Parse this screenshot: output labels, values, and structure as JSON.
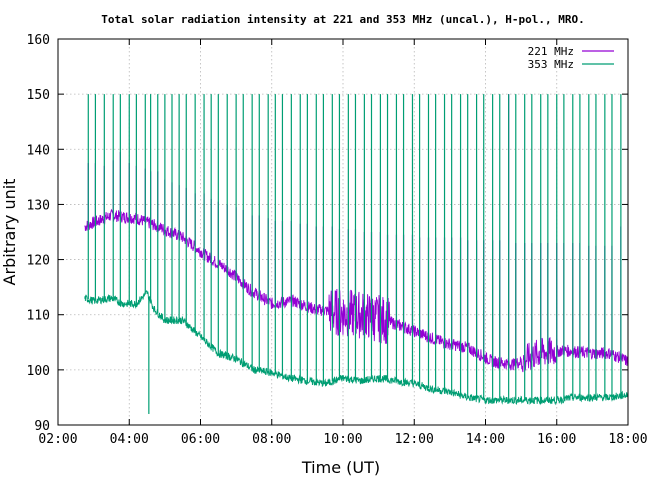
{
  "chart_data": {
    "type": "line",
    "title": "Total solar radiation intensity at 221 and 353 MHz (uncal.), H-pol., MRO.",
    "xlabel": "Time (UT)",
    "ylabel": "Arbitrary unit",
    "xlim": [
      2.0,
      18.0
    ],
    "ylim": [
      90,
      160
    ],
    "x_ticks": [
      "02:00",
      "04:00",
      "06:00",
      "08:00",
      "10:00",
      "12:00",
      "14:00",
      "16:00",
      "18:00"
    ],
    "y_ticks": [
      "90",
      "100",
      "110",
      "120",
      "130",
      "140",
      "150",
      "160"
    ],
    "grid": true,
    "legend_position": "top-right",
    "series": [
      {
        "name": "221 MHz",
        "color": "#9400d3",
        "baseline": [
          [
            2.75,
            126
          ],
          [
            3.5,
            128
          ],
          [
            4.2,
            127.5
          ],
          [
            4.8,
            126
          ],
          [
            5.5,
            124
          ],
          [
            6.2,
            120.5
          ],
          [
            6.8,
            118
          ],
          [
            7.4,
            114.5
          ],
          [
            8.0,
            112
          ],
          [
            8.6,
            112.5
          ],
          [
            9.2,
            111
          ],
          [
            9.8,
            110.5
          ],
          [
            10.5,
            110
          ],
          [
            11.2,
            109
          ],
          [
            12.0,
            107
          ],
          [
            12.8,
            105
          ],
          [
            13.5,
            104
          ],
          [
            14.2,
            101.5
          ],
          [
            14.8,
            101
          ],
          [
            15.5,
            103
          ],
          [
            16.2,
            103.5
          ],
          [
            17.0,
            103
          ],
          [
            17.5,
            103
          ],
          [
            18.0,
            101.5
          ]
        ],
        "spike_peaks": [
          [
            2.85,
            137.5
          ],
          [
            3.05,
            137.5
          ],
          [
            3.3,
            137
          ],
          [
            3.55,
            138
          ],
          [
            3.75,
            139.5
          ],
          [
            4.0,
            137.5
          ],
          [
            4.2,
            137
          ],
          [
            4.45,
            136.5
          ],
          [
            4.6,
            136
          ],
          [
            4.8,
            136
          ],
          [
            5.0,
            134.5
          ],
          [
            5.2,
            134
          ],
          [
            5.4,
            133.5
          ],
          [
            5.6,
            133
          ],
          [
            5.85,
            132
          ],
          [
            6.1,
            132
          ],
          [
            6.3,
            131
          ],
          [
            6.5,
            130.5
          ],
          [
            6.75,
            130
          ],
          [
            7.0,
            129.5
          ],
          [
            7.2,
            129
          ],
          [
            7.45,
            128
          ],
          [
            7.65,
            128
          ],
          [
            7.9,
            127.5
          ],
          [
            8.1,
            127
          ],
          [
            8.3,
            127
          ],
          [
            8.55,
            127
          ],
          [
            8.8,
            126.5
          ],
          [
            9.0,
            126.5
          ],
          [
            9.25,
            126
          ],
          [
            9.45,
            126
          ],
          [
            9.7,
            126
          ],
          [
            9.9,
            125.5
          ],
          [
            10.15,
            125.5
          ],
          [
            10.35,
            125.5
          ],
          [
            10.6,
            125
          ],
          [
            10.8,
            125
          ],
          [
            11.05,
            125
          ],
          [
            11.25,
            124.5
          ],
          [
            11.5,
            124.5
          ],
          [
            11.7,
            124.5
          ],
          [
            11.95,
            124.5
          ],
          [
            12.15,
            124
          ],
          [
            12.4,
            124
          ],
          [
            12.6,
            124
          ],
          [
            12.85,
            124
          ],
          [
            13.05,
            124
          ],
          [
            13.3,
            124
          ],
          [
            13.5,
            123.5
          ],
          [
            13.75,
            123.5
          ],
          [
            13.95,
            123.5
          ],
          [
            14.2,
            123.5
          ],
          [
            14.4,
            123.5
          ],
          [
            14.65,
            150
          ],
          [
            14.85,
            123
          ],
          [
            15.1,
            123
          ],
          [
            15.3,
            123
          ],
          [
            15.55,
            123
          ],
          [
            15.75,
            123
          ],
          [
            16.0,
            123
          ],
          [
            16.2,
            123
          ],
          [
            16.45,
            123
          ],
          [
            16.65,
            123
          ],
          [
            16.9,
            122.5
          ],
          [
            17.1,
            122.5
          ],
          [
            17.35,
            122.5
          ],
          [
            17.55,
            122.5
          ],
          [
            17.8,
            126
          ]
        ]
      },
      {
        "name": "353 MHz",
        "color": "#009e73",
        "baseline": [
          [
            2.75,
            113
          ],
          [
            3.0,
            112.5
          ],
          [
            3.5,
            113
          ],
          [
            3.8,
            112
          ],
          [
            4.2,
            112
          ],
          [
            4.5,
            114
          ],
          [
            4.7,
            111
          ],
          [
            5.0,
            109
          ],
          [
            5.5,
            109
          ],
          [
            6.0,
            106
          ],
          [
            6.5,
            103
          ],
          [
            7.0,
            102
          ],
          [
            7.5,
            100
          ],
          [
            8.0,
            99.5
          ],
          [
            8.5,
            98.5
          ],
          [
            9.0,
            98
          ],
          [
            9.5,
            97.5
          ],
          [
            10.0,
            98.5
          ],
          [
            10.5,
            98
          ],
          [
            11.0,
            98.5
          ],
          [
            11.5,
            98
          ],
          [
            12.0,
            97.5
          ],
          [
            12.5,
            96.5
          ],
          [
            13.0,
            96
          ],
          [
            13.5,
            95
          ],
          [
            14.0,
            94.5
          ],
          [
            14.5,
            94.5
          ],
          [
            15.0,
            94.5
          ],
          [
            15.5,
            94.5
          ],
          [
            16.0,
            94.5
          ],
          [
            16.5,
            95
          ],
          [
            17.0,
            95
          ],
          [
            17.5,
            95
          ],
          [
            18.0,
            95.5
          ]
        ],
        "spike_peaks": [
          [
            2.85,
            150
          ],
          [
            3.05,
            150
          ],
          [
            3.3,
            150
          ],
          [
            3.55,
            150
          ],
          [
            3.75,
            150
          ],
          [
            4.0,
            150
          ],
          [
            4.2,
            150
          ],
          [
            4.45,
            150
          ],
          [
            4.6,
            150
          ],
          [
            4.8,
            150
          ],
          [
            5.0,
            150
          ],
          [
            5.2,
            150
          ],
          [
            5.4,
            150
          ],
          [
            5.6,
            150
          ],
          [
            5.85,
            150
          ],
          [
            6.1,
            150
          ],
          [
            6.3,
            150
          ],
          [
            6.5,
            150
          ],
          [
            6.75,
            150
          ],
          [
            7.0,
            150
          ],
          [
            7.2,
            150
          ],
          [
            7.45,
            150
          ],
          [
            7.65,
            150
          ],
          [
            7.9,
            150
          ],
          [
            8.1,
            150
          ],
          [
            8.3,
            150
          ],
          [
            8.55,
            150
          ],
          [
            8.8,
            150
          ],
          [
            9.0,
            150
          ],
          [
            9.25,
            150
          ],
          [
            9.45,
            150
          ],
          [
            9.7,
            150
          ],
          [
            9.9,
            150
          ],
          [
            10.15,
            150
          ],
          [
            10.35,
            150
          ],
          [
            10.6,
            150
          ],
          [
            10.8,
            150
          ],
          [
            11.05,
            150
          ],
          [
            11.25,
            150
          ],
          [
            11.5,
            150
          ],
          [
            11.7,
            150
          ],
          [
            11.95,
            150
          ],
          [
            12.15,
            150
          ],
          [
            12.4,
            150
          ],
          [
            12.6,
            150
          ],
          [
            12.85,
            150
          ],
          [
            13.05,
            150
          ],
          [
            13.3,
            150
          ],
          [
            13.5,
            150
          ],
          [
            13.75,
            150
          ],
          [
            13.95,
            150
          ],
          [
            14.2,
            150
          ],
          [
            14.4,
            150
          ],
          [
            14.65,
            150
          ],
          [
            14.85,
            150
          ],
          [
            15.1,
            150
          ],
          [
            15.3,
            150
          ],
          [
            15.55,
            150
          ],
          [
            15.75,
            150
          ],
          [
            16.0,
            150
          ],
          [
            16.2,
            150
          ],
          [
            16.45,
            150
          ],
          [
            16.65,
            150
          ],
          [
            16.9,
            150
          ],
          [
            17.1,
            150
          ],
          [
            17.35,
            150
          ],
          [
            17.55,
            150
          ],
          [
            17.8,
            150
          ]
        ],
        "dip": [
          4.55,
          92
        ]
      }
    ]
  }
}
